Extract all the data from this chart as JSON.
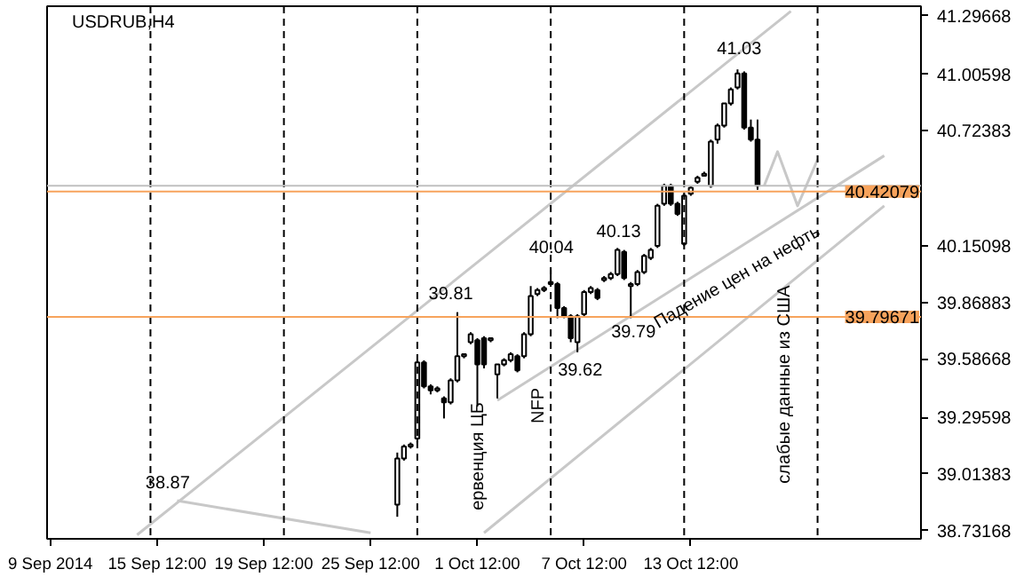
{
  "chart_data": {
    "type": "candlestick",
    "title": "USDRUB,H4",
    "categories": [
      "9 Sep 2014",
      null,
      null,
      null,
      null,
      null,
      null,
      null,
      null,
      null,
      null,
      null,
      null,
      null,
      null,
      null,
      "15 Sep 12:00",
      null,
      null,
      null,
      null,
      null,
      null,
      null,
      null,
      null,
      null,
      null,
      null,
      null,
      null,
      null,
      "19 Sep 12:00",
      null,
      null,
      null,
      null,
      null,
      null,
      null,
      null,
      null,
      null,
      null,
      null,
      null,
      null,
      null,
      "25 Sep 12:00",
      null,
      null,
      null,
      null,
      null,
      null,
      null,
      null,
      null,
      null,
      null,
      null,
      null,
      null,
      null,
      "1 Oct 12:00",
      null,
      null,
      null,
      null,
      null,
      null,
      null,
      null,
      null,
      null,
      null,
      null,
      null,
      null,
      null,
      "7 Oct 12:00",
      null,
      null,
      null,
      null,
      null,
      null,
      null,
      null,
      null,
      null,
      null,
      null,
      null,
      null,
      null,
      "13 Oct 12:00",
      null,
      null,
      null,
      null,
      null,
      null,
      null,
      null,
      null,
      null,
      null,
      null,
      null,
      null,
      null,
      null,
      null,
      null,
      null,
      null,
      null,
      null,
      null,
      null,
      null,
      null,
      null,
      null,
      null,
      null,
      null,
      null,
      null,
      null
    ],
    "ohlc": [
      null,
      null,
      null,
      null,
      null,
      null,
      null,
      null,
      null,
      null,
      null,
      null,
      null,
      null,
      null,
      null,
      null,
      null,
      null,
      null,
      null,
      null,
      null,
      null,
      null,
      null,
      null,
      null,
      null,
      null,
      null,
      null,
      null,
      null,
      null,
      null,
      null,
      null,
      null,
      null,
      null,
      null,
      null,
      null,
      null,
      null,
      null,
      null,
      null,
      null,
      null,
      null,
      [
        38.86,
        39.12,
        38.8,
        39.09
      ],
      [
        39.09,
        39.16,
        39.08,
        39.15
      ],
      [
        39.15,
        39.17,
        39.14,
        39.16
      ],
      [
        39.19,
        39.58,
        39.17,
        39.57
      ],
      [
        39.57,
        39.58,
        39.44,
        39.45
      ],
      [
        39.45,
        39.46,
        39.41,
        39.43
      ],
      [
        39.43,
        39.45,
        39.42,
        39.44
      ],
      [
        39.39,
        39.4,
        39.29,
        39.37
      ],
      [
        39.37,
        39.49,
        39.36,
        39.48
      ],
      [
        39.48,
        39.82,
        39.47,
        39.6
      ],
      [
        39.6,
        39.61,
        39.59,
        39.61
      ],
      [
        39.67,
        39.72,
        39.66,
        39.71
      ],
      [
        39.68,
        39.69,
        39.35,
        39.56
      ],
      [
        39.69,
        39.7,
        39.54,
        39.56
      ],
      [
        39.68,
        39.69,
        39.67,
        39.69
      ],
      [
        39.51,
        39.56,
        39.39,
        39.56
      ],
      [
        39.56,
        39.59,
        39.55,
        39.58
      ],
      [
        39.58,
        39.62,
        39.57,
        39.61
      ],
      [
        39.6,
        39.61,
        39.52,
        39.53
      ],
      [
        39.6,
        39.72,
        39.59,
        39.71
      ],
      [
        39.71,
        39.95,
        39.7,
        39.9
      ],
      [
        39.91,
        39.94,
        39.9,
        39.93
      ],
      [
        39.93,
        39.95,
        39.92,
        39.94
      ],
      [
        39.97,
        40.03,
        39.95,
        39.96
      ],
      [
        39.96,
        39.97,
        39.79,
        39.84
      ],
      [
        39.84,
        39.85,
        39.79,
        39.8
      ],
      [
        39.8,
        39.81,
        39.67,
        39.69
      ],
      [
        39.67,
        39.81,
        39.62,
        39.8
      ],
      [
        39.81,
        39.93,
        39.8,
        39.92
      ],
      [
        39.92,
        39.95,
        39.91,
        39.94
      ],
      [
        39.93,
        39.94,
        39.88,
        39.89
      ],
      [
        39.98,
        40.0,
        39.97,
        39.99
      ],
      [
        39.99,
        40.02,
        39.98,
        40.01
      ],
      [
        40.01,
        40.14,
        40.0,
        40.13
      ],
      [
        40.12,
        40.13,
        39.98,
        39.99
      ],
      [
        39.95,
        39.97,
        39.79,
        39.96
      ],
      [
        39.96,
        40.03,
        39.95,
        40.02
      ],
      [
        40.02,
        40.11,
        40.01,
        40.1
      ],
      [
        40.09,
        40.14,
        40.08,
        40.13
      ],
      [
        40.15,
        40.36,
        40.14,
        40.35
      ],
      [
        40.36,
        40.46,
        40.35,
        40.45
      ],
      [
        40.45,
        40.46,
        40.35,
        40.36
      ],
      [
        40.36,
        40.37,
        40.3,
        40.31
      ],
      [
        40.16,
        40.41,
        40.15,
        40.4
      ],
      [
        40.41,
        40.45,
        40.4,
        40.44
      ],
      [
        40.47,
        40.5,
        40.46,
        40.49
      ],
      [
        40.5,
        40.52,
        40.5,
        40.51
      ],
      [
        40.45,
        40.68,
        40.44,
        40.67
      ],
      [
        40.68,
        40.76,
        40.66,
        40.75
      ],
      [
        40.75,
        40.86,
        40.74,
        40.86
      ],
      [
        40.86,
        40.94,
        40.85,
        40.93
      ],
      [
        40.94,
        41.03,
        40.93,
        41.01
      ],
      [
        41.01,
        41.02,
        40.73,
        40.74
      ],
      [
        40.74,
        40.78,
        40.67,
        40.68
      ],
      [
        40.68,
        40.78,
        40.43,
        40.45
      ],
      null,
      null,
      null,
      null,
      null,
      null,
      null,
      null,
      null,
      null,
      null,
      null,
      null,
      null,
      null,
      null,
      null,
      null,
      null,
      null,
      null,
      null,
      null,
      null
    ],
    "color": "#000000",
    "series": [
      {
        "type": "line",
        "color": "#c8c8c8",
        "values": [
          null,
          null,
          null,
          null,
          null,
          null,
          null,
          null,
          null,
          null,
          null,
          null,
          null,
          38.71,
          null,
          null,
          null,
          null,
          null,
          null,
          null,
          null,
          null,
          null,
          null,
          null,
          null,
          null,
          null,
          null,
          null,
          null,
          null,
          null,
          null,
          null,
          null,
          null,
          null,
          null,
          null,
          null,
          null,
          null,
          null,
          null,
          null,
          null,
          null,
          null,
          null,
          null,
          null,
          null,
          null,
          null,
          null,
          null,
          null,
          null,
          null,
          null,
          null,
          null,
          null,
          null,
          null,
          null,
          null,
          null,
          null,
          null,
          null,
          null,
          null,
          null,
          null,
          null,
          null,
          null,
          null,
          null,
          null,
          null,
          null,
          null,
          null,
          null,
          null,
          null,
          null,
          null,
          null,
          null,
          null,
          null,
          null,
          null,
          null,
          null,
          null,
          null,
          null,
          null,
          null,
          null,
          null,
          null,
          null,
          null,
          null,
          41.32,
          null,
          null,
          null,
          null,
          null,
          null,
          null,
          null,
          null,
          null,
          null,
          null,
          null,
          null,
          null,
          null,
          null,
          null,
          null
        ]
      },
      {
        "type": "line",
        "color": "#c8c8c8",
        "values": [
          null,
          null,
          null,
          null,
          null,
          null,
          null,
          null,
          null,
          null,
          null,
          null,
          null,
          null,
          null,
          null,
          null,
          null,
          null,
          null,
          null,
          null,
          null,
          null,
          null,
          null,
          null,
          null,
          null,
          null,
          null,
          null,
          null,
          null,
          null,
          null,
          null,
          null,
          null,
          null,
          null,
          null,
          null,
          null,
          null,
          null,
          null,
          null,
          null,
          null,
          null,
          null,
          null,
          null,
          null,
          null,
          null,
          null,
          null,
          null,
          null,
          null,
          null,
          null,
          null,
          null,
          null,
          39.38,
          null,
          null,
          null,
          null,
          null,
          null,
          null,
          null,
          null,
          null,
          null,
          null,
          null,
          null,
          null,
          null,
          null,
          null,
          null,
          null,
          null,
          null,
          null,
          null,
          null,
          null,
          null,
          null,
          null,
          null,
          null,
          null,
          null,
          null,
          null,
          null,
          null,
          null,
          null,
          null,
          null,
          null,
          null,
          null,
          null,
          null,
          null,
          null,
          null,
          null,
          null,
          null,
          null,
          null,
          null,
          null,
          null,
          40.6,
          null,
          null,
          null,
          null,
          null
        ]
      },
      {
        "type": "line",
        "color": "#c8c8c8",
        "values": [
          null,
          null,
          null,
          null,
          null,
          null,
          null,
          null,
          null,
          null,
          null,
          null,
          null,
          null,
          null,
          null,
          null,
          null,
          null,
          null,
          null,
          null,
          null,
          null,
          null,
          null,
          null,
          null,
          null,
          null,
          null,
          null,
          null,
          null,
          null,
          null,
          null,
          null,
          null,
          null,
          null,
          null,
          null,
          null,
          null,
          null,
          null,
          null,
          null,
          null,
          null,
          null,
          null,
          null,
          null,
          null,
          null,
          null,
          null,
          null,
          null,
          null,
          null,
          null,
          null,
          38.72,
          null,
          null,
          null,
          null,
          null,
          null,
          null,
          null,
          null,
          null,
          null,
          null,
          null,
          null,
          null,
          null,
          null,
          null,
          null,
          null,
          null,
          null,
          null,
          null,
          null,
          null,
          null,
          null,
          null,
          null,
          null,
          null,
          null,
          null,
          null,
          null,
          null,
          null,
          null,
          null,
          null,
          null,
          null,
          null,
          null,
          null,
          null,
          null,
          null,
          null,
          null,
          null,
          null,
          null,
          null,
          null,
          null,
          null,
          null,
          40.35,
          null,
          null,
          null,
          null,
          null
        ]
      },
      {
        "type": "line",
        "color": "#c8c8c8",
        "values": [
          null,
          null,
          null,
          null,
          null,
          null,
          null,
          null,
          null,
          null,
          null,
          null,
          null,
          null,
          null,
          null,
          null,
          null,
          null,
          38.88,
          null,
          null,
          null,
          null,
          null,
          null,
          null,
          null,
          null,
          null,
          null,
          null,
          null,
          null,
          null,
          null,
          null,
          null,
          null,
          null,
          null,
          null,
          null,
          null,
          null,
          null,
          null,
          null,
          38.72,
          null,
          null,
          null,
          null,
          null,
          null,
          null,
          null,
          null,
          null,
          null,
          null,
          null,
          null,
          null,
          null,
          null,
          null,
          null,
          null,
          null,
          null,
          null,
          null,
          null,
          null,
          null,
          null,
          null,
          null,
          null,
          null,
          null,
          null,
          null,
          null,
          null,
          null,
          null,
          null,
          null,
          null,
          null,
          null,
          null,
          null,
          null,
          null,
          null,
          null,
          null,
          null,
          null,
          null,
          null,
          null,
          null,
          null,
          null,
          null,
          null,
          null,
          null,
          null,
          null,
          null,
          null,
          null,
          null,
          null,
          null,
          null,
          null,
          null,
          null,
          null,
          null,
          null,
          null,
          null,
          null,
          null
        ]
      },
      {
        "type": "line",
        "color": "#c8c8c8",
        "values": [
          null,
          null,
          null,
          null,
          null,
          null,
          null,
          null,
          null,
          null,
          null,
          null,
          null,
          null,
          null,
          null,
          null,
          null,
          null,
          null,
          null,
          null,
          null,
          null,
          null,
          null,
          null,
          null,
          null,
          null,
          null,
          null,
          null,
          null,
          null,
          null,
          null,
          null,
          null,
          null,
          null,
          null,
          null,
          null,
          null,
          null,
          null,
          null,
          null,
          null,
          null,
          null,
          null,
          null,
          null,
          null,
          null,
          null,
          null,
          null,
          null,
          null,
          null,
          null,
          null,
          null,
          null,
          null,
          null,
          null,
          null,
          null,
          null,
          null,
          null,
          null,
          null,
          null,
          null,
          null,
          null,
          null,
          null,
          null,
          null,
          null,
          null,
          null,
          null,
          null,
          null,
          null,
          null,
          null,
          null,
          null,
          null,
          null,
          null,
          null,
          null,
          null,
          null,
          null,
          null,
          null,
          null,
          40.45,
          null,
          40.62,
          null,
          null,
          40.35,
          null,
          null,
          40.58,
          null,
          null,
          null,
          null,
          null,
          null,
          null,
          null,
          null,
          null,
          null,
          null,
          null,
          null,
          null
        ]
      }
    ],
    "ylim": [
      38.69,
      41.345
    ],
    "yticks": [
      {
        "value": 38.73168,
        "label": "38.73168"
      },
      {
        "value": 39.01383,
        "label": "39.01383"
      },
      {
        "value": 39.29598,
        "label": "39.29598"
      },
      {
        "value": 39.58668,
        "label": "39.58668"
      },
      {
        "value": 39.86883,
        "label": "39.86883"
      },
      {
        "value": 40.15098,
        "label": "40.15098"
      },
      {
        "value": 40.72383,
        "label": "40.72383"
      },
      {
        "value": 41.00598,
        "label": "41.00598"
      },
      {
        "value": 41.29668,
        "label": "41.29668"
      }
    ],
    "ref_lines": [
      {
        "axis": "y",
        "value": 40.42079,
        "label": "40.42079",
        "color": "#f7a35c"
      },
      {
        "axis": "y",
        "value": 39.79671,
        "label": "39.79671",
        "color": "#f7a35c"
      },
      {
        "axis": "y",
        "value": 40.45,
        "label": null,
        "color": "#c0c0c0"
      }
    ],
    "annotations": [
      "38.87",
      "39.81",
      "40.04",
      "40.13",
      "41.03",
      "39.62",
      "39.79",
      "ервенция ЦБ",
      "NFP",
      "Падение цен на нефть",
      "слабые данные из США"
    ],
    "grid": false
  }
}
